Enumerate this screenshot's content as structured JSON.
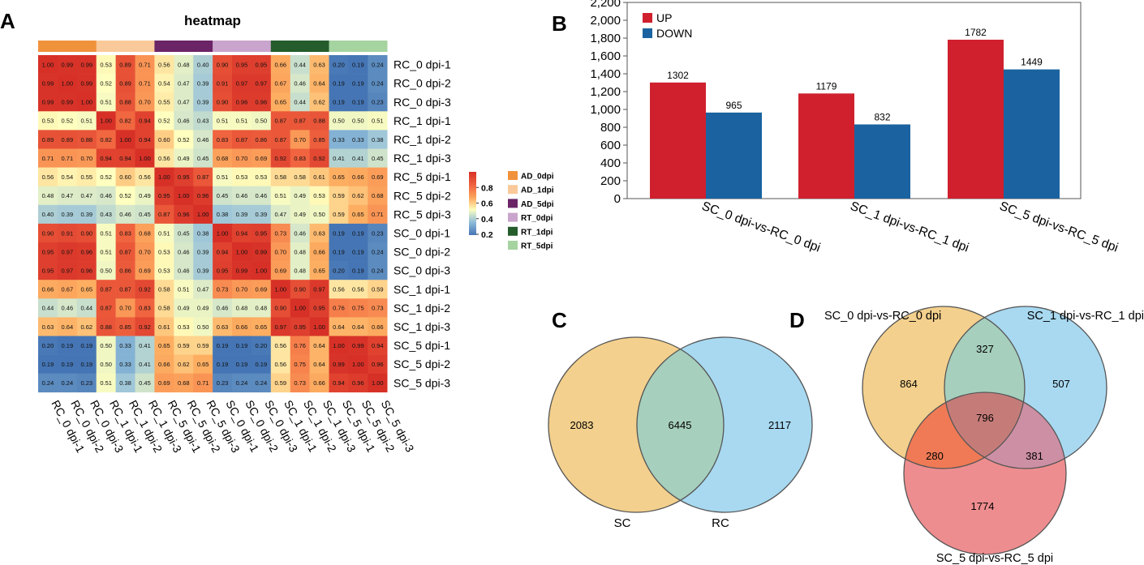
{
  "panels": {
    "a_label": "A",
    "b_label": "B",
    "c_label": "C",
    "d_label": "D"
  },
  "chart_data": [
    {
      "type": "heatmap",
      "title": "heatmap",
      "rows": [
        "RC_0 dpi-1",
        "RC_0 dpi-2",
        "RC_0 dpi-3",
        "RC_1 dpi-1",
        "RC_1 dpi-2",
        "RC_1 dpi-3",
        "RC_5 dpi-1",
        "RC_5 dpi-2",
        "RC_5 dpi-3",
        "SC_0 dpi-1",
        "SC_0 dpi-2",
        "SC_0 dpi-3",
        "SC_1 dpi-1",
        "SC_1 dpi-2",
        "SC_1 dpi-3",
        "SC_5 dpi-1",
        "SC_5 dpi-2",
        "SC_5 dpi-3"
      ],
      "columns": [
        "RC_0 dpi-1",
        "RC_0 dpi-2",
        "RC_0 dpi-3",
        "RC_1 dpi-1",
        "RC_1 dpi-2",
        "RC_1 dpi-3",
        "RC_5 dpi-1",
        "RC_5 dpi-2",
        "RC_5 dpi-3",
        "SC_0 dpi-1",
        "SC_0 dpi-2",
        "SC_0 dpi-3",
        "SC_1 dpi-1",
        "SC_1 dpi-2",
        "SC_1 dpi-3",
        "SC_5 dpi-1",
        "SC_5 dpi-2",
        "SC_5 dpi-3"
      ],
      "values": [
        [
          1.0,
          0.99,
          0.99,
          0.53,
          0.89,
          0.71,
          0.56,
          0.48,
          0.4,
          0.9,
          0.95,
          0.95,
          0.66,
          0.44,
          0.63,
          0.2,
          0.19,
          0.24
        ],
        [
          0.99,
          1.0,
          0.99,
          0.52,
          0.89,
          0.71,
          0.54,
          0.47,
          0.39,
          0.91,
          0.97,
          0.97,
          0.67,
          0.46,
          0.64,
          0.19,
          0.19,
          0.24
        ],
        [
          0.99,
          0.99,
          1.0,
          0.51,
          0.88,
          0.7,
          0.55,
          0.47,
          0.39,
          0.9,
          0.96,
          0.96,
          0.65,
          0.44,
          0.62,
          0.19,
          0.19,
          0.23
        ],
        [
          0.53,
          0.52,
          0.51,
          1.0,
          0.82,
          0.94,
          0.52,
          0.46,
          0.43,
          0.51,
          0.51,
          0.5,
          0.87,
          0.87,
          0.88,
          0.5,
          0.5,
          0.51
        ],
        [
          0.89,
          0.89,
          0.88,
          0.82,
          1.0,
          0.94,
          0.6,
          0.52,
          0.46,
          0.83,
          0.87,
          0.86,
          0.87,
          0.7,
          0.85,
          0.33,
          0.33,
          0.38
        ],
        [
          0.71,
          0.71,
          0.7,
          0.94,
          0.94,
          1.0,
          0.56,
          0.49,
          0.45,
          0.68,
          0.7,
          0.69,
          0.92,
          0.83,
          0.92,
          0.41,
          0.41,
          0.45
        ],
        [
          0.56,
          0.54,
          0.55,
          0.52,
          0.6,
          0.56,
          1.0,
          0.95,
          0.87,
          0.51,
          0.53,
          0.53,
          0.58,
          0.58,
          0.61,
          0.65,
          0.66,
          0.69
        ],
        [
          0.48,
          0.47,
          0.47,
          0.46,
          0.52,
          0.49,
          0.95,
          1.0,
          0.96,
          0.45,
          0.46,
          0.46,
          0.51,
          0.49,
          0.53,
          0.59,
          0.62,
          0.68
        ],
        [
          0.4,
          0.39,
          0.39,
          0.43,
          0.46,
          0.45,
          0.87,
          0.96,
          1.0,
          0.38,
          0.39,
          0.39,
          0.47,
          0.49,
          0.5,
          0.59,
          0.65,
          0.71
        ],
        [
          0.9,
          0.91,
          0.9,
          0.51,
          0.83,
          0.68,
          0.51,
          0.45,
          0.38,
          1.0,
          0.94,
          0.95,
          0.73,
          0.46,
          0.63,
          0.19,
          0.19,
          0.23
        ],
        [
          0.95,
          0.97,
          0.96,
          0.51,
          0.87,
          0.7,
          0.53,
          0.46,
          0.39,
          0.94,
          1.0,
          0.99,
          0.7,
          0.48,
          0.66,
          0.19,
          0.19,
          0.24
        ],
        [
          0.95,
          0.97,
          0.96,
          0.5,
          0.86,
          0.69,
          0.53,
          0.46,
          0.39,
          0.95,
          0.99,
          1.0,
          0.69,
          0.48,
          0.65,
          0.2,
          0.19,
          0.24
        ],
        [
          0.66,
          0.67,
          0.65,
          0.87,
          0.87,
          0.92,
          0.58,
          0.51,
          0.47,
          0.73,
          0.7,
          0.69,
          1.0,
          0.9,
          0.97,
          0.56,
          0.56,
          0.59
        ],
        [
          0.44,
          0.46,
          0.44,
          0.87,
          0.7,
          0.83,
          0.58,
          0.49,
          0.49,
          0.46,
          0.48,
          0.48,
          0.9,
          1.0,
          0.95,
          0.76,
          0.75,
          0.73
        ],
        [
          0.63,
          0.64,
          0.62,
          0.88,
          0.85,
          0.92,
          0.61,
          0.53,
          0.5,
          0.63,
          0.66,
          0.65,
          0.97,
          0.95,
          1.0,
          0.64,
          0.64,
          0.66
        ],
        [
          0.2,
          0.19,
          0.19,
          0.5,
          0.33,
          0.41,
          0.65,
          0.59,
          0.59,
          0.19,
          0.19,
          0.2,
          0.56,
          0.76,
          0.64,
          1.0,
          0.99,
          0.94
        ],
        [
          0.19,
          0.19,
          0.19,
          0.5,
          0.33,
          0.41,
          0.66,
          0.62,
          0.65,
          0.19,
          0.19,
          0.19,
          0.56,
          0.75,
          0.64,
          0.99,
          1.0,
          0.96
        ],
        [
          0.24,
          0.24,
          0.23,
          0.51,
          0.38,
          0.45,
          0.69,
          0.68,
          0.71,
          0.23,
          0.24,
          0.24,
          0.59,
          0.73,
          0.66,
          0.94,
          0.96,
          1.0
        ]
      ],
      "groups": [
        {
          "name": "AD_0dpi",
          "color": "#f0923c"
        },
        {
          "name": "AD_1dpi",
          "color": "#f9c99a"
        },
        {
          "name": "AD_5dpi",
          "color": "#6b2466"
        },
        {
          "name": "RT_0dpi",
          "color": "#c9a4cc"
        },
        {
          "name": "RT_1dpi",
          "color": "#245c2c"
        },
        {
          "name": "RT_5dpi",
          "color": "#a5d4a0"
        }
      ],
      "colorbar": {
        "ticks": [
          "0.8",
          "0.6",
          "0.4",
          "0.2"
        ],
        "tick_values": [
          0.8,
          0.6,
          0.4,
          0.2
        ],
        "range": [
          0.19,
          1.0
        ]
      }
    },
    {
      "type": "bar",
      "categories": [
        "SC_0 dpi-vs-RC_0 dpi",
        "SC_1 dpi-vs-RC_1 dpi",
        "SC_5 dpi-vs-RC_5 dpi"
      ],
      "series": [
        {
          "name": "UP",
          "values": [
            1302,
            1179,
            1782
          ],
          "color": "#d0202e"
        },
        {
          "name": "DOWN",
          "values": [
            965,
            832,
            1449
          ],
          "color": "#1a63a0"
        }
      ],
      "ylim": [
        0,
        2200
      ],
      "yticks": [
        "0",
        "200",
        "400",
        "600",
        "800",
        "1,000",
        "1,200",
        "1,400",
        "1,600",
        "1,800",
        "2,000",
        "2,200"
      ],
      "ytick_values": [
        0,
        200,
        400,
        600,
        800,
        1000,
        1200,
        1400,
        1600,
        1800,
        2000,
        2200
      ],
      "legend": "top-left"
    },
    {
      "type": "venn",
      "sets": [
        {
          "name": "SC",
          "only": "2083",
          "color": "#f3d08d"
        },
        {
          "name": "RC",
          "only": "2117",
          "color": "#a8d9f1"
        }
      ],
      "intersection": "6445",
      "intersection_color": "#a6cfbd"
    },
    {
      "type": "venn",
      "sets": [
        {
          "name": "SC_0 dpi-vs-RC_0 dpi",
          "color": "#f3d08d"
        },
        {
          "name": "SC_1 dpi-vs-RC_1 dpi",
          "color": "#a8d9f1"
        },
        {
          "name": "SC_5 dpi-vs-RC_5 dpi",
          "color": "#ee8d8f"
        }
      ],
      "regions": {
        "a_only": "864",
        "b_only": "507",
        "c_only": "1774",
        "ab": "327",
        "ac": "280",
        "bc": "381",
        "abc": "796"
      },
      "region_colors": {
        "ab": "#a6cfbd",
        "ac": "#ef7a55",
        "bc": "#cd8fa3",
        "abc": "#c57c79"
      }
    }
  ]
}
